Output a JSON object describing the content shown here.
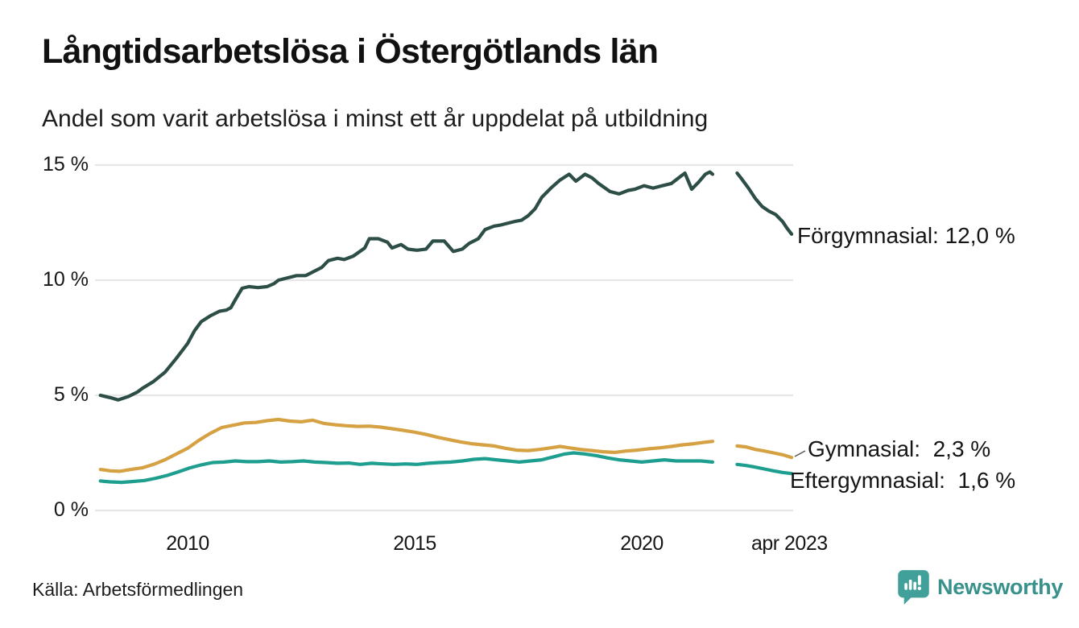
{
  "header": {
    "title": "Långtidsarbetslösa i Östergötlands län",
    "subtitle": "Andel som varit arbetslösa i minst ett år uppdelat på utbildning"
  },
  "footer": {
    "source": "Källa: Arbetsförmedlingen",
    "brand_name": "Newsworthy",
    "brand_icon": "newsworthy-speech-bubble-bar-chart-icon"
  },
  "colors": {
    "forgymnasial_line": "#2c4e46",
    "gymnasial_line": "#d5a142",
    "eftergymnasial_line": "#1d9e8f",
    "gridline": "#e7e7e7",
    "text": "#161616",
    "brand_teal": "#41a099",
    "leader_line": "#555555"
  },
  "chart_data": {
    "type": "line",
    "title": "Långtidsarbetslösa i Östergötlands län",
    "subtitle": "Andel som varit arbetslösa i minst ett år uppdelat på utbildning",
    "xlabel": "",
    "ylabel": "",
    "xlim": [
      2008.0,
      2023.45
    ],
    "ylim": [
      0,
      15
    ],
    "grid": "horizontal-only",
    "legend_position": "labels-at-line-ends",
    "data_gap": {
      "from": 2021.56,
      "to": 2022.1,
      "note": "visible break in all three lines"
    },
    "y_axis": {
      "ticks": [
        {
          "label": "0 %",
          "value": 0
        },
        {
          "label": "5 %",
          "value": 5
        },
        {
          "label": "10 %",
          "value": 10
        },
        {
          "label": "15 %",
          "value": 15
        }
      ]
    },
    "x_axis": {
      "ticks": [
        {
          "label": "2010",
          "year": 2010
        },
        {
          "label": "2015",
          "year": 2015
        },
        {
          "label": "2020",
          "year": 2020
        },
        {
          "label": "apr 2023",
          "year": 2023.25
        }
      ]
    },
    "series": [
      {
        "name": "Förgymnasial",
        "end_label": "Förgymnasial: 12,0 %",
        "end_value": 12.0,
        "color_key": "forgymnasial_line",
        "segments": [
          [
            [
              2008.08,
              5.0
            ],
            [
              2008.3,
              4.9
            ],
            [
              2008.47,
              4.8
            ],
            [
              2008.7,
              4.95
            ],
            [
              2008.9,
              5.15
            ],
            [
              2009.0,
              5.3
            ],
            [
              2009.25,
              5.6
            ],
            [
              2009.5,
              6.0
            ],
            [
              2009.75,
              6.6
            ],
            [
              2010.0,
              7.25
            ],
            [
              2010.15,
              7.8
            ],
            [
              2010.3,
              8.2
            ],
            [
              2010.5,
              8.45
            ],
            [
              2010.7,
              8.65
            ],
            [
              2010.85,
              8.7
            ],
            [
              2010.95,
              8.8
            ],
            [
              2011.05,
              9.15
            ],
            [
              2011.2,
              9.65
            ],
            [
              2011.35,
              9.72
            ],
            [
              2011.55,
              9.68
            ],
            [
              2011.75,
              9.72
            ],
            [
              2011.9,
              9.85
            ],
            [
              2012.0,
              10.0
            ],
            [
              2012.2,
              10.1
            ],
            [
              2012.4,
              10.2
            ],
            [
              2012.6,
              10.2
            ],
            [
              2012.75,
              10.35
            ],
            [
              2012.95,
              10.55
            ],
            [
              2013.1,
              10.85
            ],
            [
              2013.3,
              10.95
            ],
            [
              2013.45,
              10.9
            ],
            [
              2013.65,
              11.05
            ],
            [
              2013.9,
              11.4
            ],
            [
              2014.0,
              11.8
            ],
            [
              2014.2,
              11.8
            ],
            [
              2014.4,
              11.65
            ],
            [
              2014.5,
              11.4
            ],
            [
              2014.7,
              11.55
            ],
            [
              2014.85,
              11.35
            ],
            [
              2015.05,
              11.3
            ],
            [
              2015.25,
              11.35
            ],
            [
              2015.4,
              11.7
            ],
            [
              2015.65,
              11.7
            ],
            [
              2015.85,
              11.25
            ],
            [
              2016.05,
              11.35
            ],
            [
              2016.2,
              11.6
            ],
            [
              2016.4,
              11.8
            ],
            [
              2016.55,
              12.2
            ],
            [
              2016.75,
              12.35
            ],
            [
              2016.9,
              12.4
            ],
            [
              2017.2,
              12.55
            ],
            [
              2017.35,
              12.6
            ],
            [
              2017.5,
              12.8
            ],
            [
              2017.65,
              13.1
            ],
            [
              2017.8,
              13.6
            ],
            [
              2018.0,
              14.0
            ],
            [
              2018.2,
              14.35
            ],
            [
              2018.4,
              14.6
            ],
            [
              2018.55,
              14.3
            ],
            [
              2018.75,
              14.6
            ],
            [
              2018.9,
              14.45
            ],
            [
              2019.05,
              14.2
            ],
            [
              2019.3,
              13.85
            ],
            [
              2019.5,
              13.75
            ],
            [
              2019.7,
              13.9
            ],
            [
              2019.85,
              13.95
            ],
            [
              2020.05,
              14.1
            ],
            [
              2020.25,
              14.0
            ],
            [
              2020.45,
              14.1
            ],
            [
              2020.65,
              14.2
            ],
            [
              2020.85,
              14.5
            ],
            [
              2020.95,
              14.65
            ],
            [
              2021.1,
              13.95
            ],
            [
              2021.25,
              14.25
            ],
            [
              2021.4,
              14.6
            ],
            [
              2021.5,
              14.7
            ],
            [
              2021.56,
              14.6
            ]
          ],
          [
            [
              2022.1,
              14.65
            ],
            [
              2022.2,
              14.4
            ],
            [
              2022.35,
              14.0
            ],
            [
              2022.5,
              13.55
            ],
            [
              2022.65,
              13.2
            ],
            [
              2022.8,
              13.0
            ],
            [
              2022.95,
              12.85
            ],
            [
              2023.1,
              12.55
            ],
            [
              2023.2,
              12.25
            ],
            [
              2023.3,
              12.0
            ]
          ]
        ]
      },
      {
        "name": "Gymnasial",
        "end_label": "Gymnasial:  2,3 %",
        "end_value": 2.3,
        "color_key": "gymnasial_line",
        "segments": [
          [
            [
              2008.08,
              1.78
            ],
            [
              2008.3,
              1.72
            ],
            [
              2008.5,
              1.7
            ],
            [
              2008.75,
              1.78
            ],
            [
              2009.0,
              1.85
            ],
            [
              2009.25,
              2.0
            ],
            [
              2009.5,
              2.2
            ],
            [
              2009.75,
              2.45
            ],
            [
              2010.0,
              2.7
            ],
            [
              2010.25,
              3.05
            ],
            [
              2010.5,
              3.35
            ],
            [
              2010.75,
              3.6
            ],
            [
              2011.0,
              3.7
            ],
            [
              2011.25,
              3.8
            ],
            [
              2011.5,
              3.82
            ],
            [
              2011.75,
              3.9
            ],
            [
              2012.0,
              3.95
            ],
            [
              2012.25,
              3.88
            ],
            [
              2012.5,
              3.85
            ],
            [
              2012.75,
              3.92
            ],
            [
              2013.0,
              3.78
            ],
            [
              2013.25,
              3.72
            ],
            [
              2013.5,
              3.68
            ],
            [
              2013.75,
              3.65
            ],
            [
              2014.0,
              3.66
            ],
            [
              2014.25,
              3.62
            ],
            [
              2014.5,
              3.55
            ],
            [
              2014.75,
              3.48
            ],
            [
              2015.0,
              3.4
            ],
            [
              2015.25,
              3.3
            ],
            [
              2015.5,
              3.18
            ],
            [
              2015.75,
              3.08
            ],
            [
              2016.0,
              2.98
            ],
            [
              2016.25,
              2.9
            ],
            [
              2016.5,
              2.85
            ],
            [
              2016.75,
              2.8
            ],
            [
              2017.0,
              2.7
            ],
            [
              2017.25,
              2.62
            ],
            [
              2017.5,
              2.6
            ],
            [
              2017.75,
              2.65
            ],
            [
              2018.0,
              2.72
            ],
            [
              2018.2,
              2.78
            ],
            [
              2018.4,
              2.72
            ],
            [
              2018.65,
              2.65
            ],
            [
              2018.9,
              2.6
            ],
            [
              2019.15,
              2.55
            ],
            [
              2019.4,
              2.52
            ],
            [
              2019.65,
              2.58
            ],
            [
              2019.9,
              2.62
            ],
            [
              2020.15,
              2.68
            ],
            [
              2020.4,
              2.72
            ],
            [
              2020.65,
              2.78
            ],
            [
              2020.9,
              2.85
            ],
            [
              2021.15,
              2.9
            ],
            [
              2021.35,
              2.95
            ],
            [
              2021.56,
              3.0
            ]
          ],
          [
            [
              2022.1,
              2.8
            ],
            [
              2022.3,
              2.76
            ],
            [
              2022.5,
              2.65
            ],
            [
              2022.7,
              2.58
            ],
            [
              2022.9,
              2.5
            ],
            [
              2023.1,
              2.42
            ],
            [
              2023.3,
              2.3
            ]
          ]
        ]
      },
      {
        "name": "Eftergymnasial",
        "end_label": "Eftergymnasial:  1,6 %",
        "end_value": 1.6,
        "color_key": "eftergymnasial_line",
        "segments": [
          [
            [
              2008.08,
              1.28
            ],
            [
              2008.3,
              1.24
            ],
            [
              2008.55,
              1.22
            ],
            [
              2008.8,
              1.26
            ],
            [
              2009.05,
              1.3
            ],
            [
              2009.3,
              1.4
            ],
            [
              2009.55,
              1.52
            ],
            [
              2009.8,
              1.68
            ],
            [
              2010.05,
              1.85
            ],
            [
              2010.3,
              1.98
            ],
            [
              2010.55,
              2.08
            ],
            [
              2010.8,
              2.1
            ],
            [
              2011.05,
              2.15
            ],
            [
              2011.3,
              2.12
            ],
            [
              2011.55,
              2.12
            ],
            [
              2011.8,
              2.15
            ],
            [
              2012.05,
              2.1
            ],
            [
              2012.3,
              2.12
            ],
            [
              2012.55,
              2.15
            ],
            [
              2012.8,
              2.1
            ],
            [
              2013.05,
              2.08
            ],
            [
              2013.3,
              2.05
            ],
            [
              2013.55,
              2.06
            ],
            [
              2013.8,
              2.0
            ],
            [
              2014.05,
              2.05
            ],
            [
              2014.3,
              2.02
            ],
            [
              2014.55,
              2.0
            ],
            [
              2014.8,
              2.02
            ],
            [
              2015.05,
              2.0
            ],
            [
              2015.3,
              2.05
            ],
            [
              2015.55,
              2.08
            ],
            [
              2015.8,
              2.1
            ],
            [
              2016.05,
              2.15
            ],
            [
              2016.3,
              2.22
            ],
            [
              2016.55,
              2.25
            ],
            [
              2016.8,
              2.2
            ],
            [
              2017.05,
              2.15
            ],
            [
              2017.3,
              2.1
            ],
            [
              2017.55,
              2.15
            ],
            [
              2017.8,
              2.2
            ],
            [
              2018.05,
              2.32
            ],
            [
              2018.3,
              2.45
            ],
            [
              2018.5,
              2.5
            ],
            [
              2018.75,
              2.45
            ],
            [
              2019.0,
              2.38
            ],
            [
              2019.25,
              2.28
            ],
            [
              2019.5,
              2.2
            ],
            [
              2019.75,
              2.15
            ],
            [
              2020.0,
              2.1
            ],
            [
              2020.25,
              2.15
            ],
            [
              2020.5,
              2.2
            ],
            [
              2020.75,
              2.15
            ],
            [
              2021.0,
              2.15
            ],
            [
              2021.3,
              2.15
            ],
            [
              2021.56,
              2.1
            ]
          ],
          [
            [
              2022.1,
              2.0
            ],
            [
              2022.3,
              1.95
            ],
            [
              2022.5,
              1.88
            ],
            [
              2022.7,
              1.8
            ],
            [
              2022.9,
              1.72
            ],
            [
              2023.1,
              1.65
            ],
            [
              2023.3,
              1.6
            ]
          ]
        ]
      }
    ]
  }
}
